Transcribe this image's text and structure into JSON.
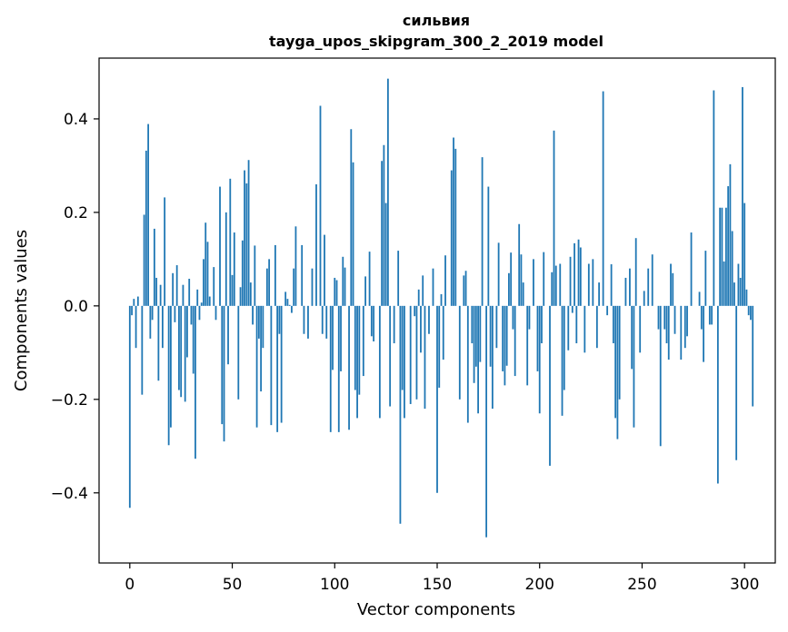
{
  "chart_data": {
    "type": "bar",
    "title": "сильвия",
    "subtitle": "tayga_upos_skipgram_300_2_2019 model",
    "xlabel": "Vector components",
    "ylabel": "Components values",
    "xlim": [
      -15,
      315
    ],
    "ylim": [
      -0.55,
      0.53
    ],
    "xticks": [
      0,
      50,
      100,
      150,
      200,
      250,
      300
    ],
    "xtick_labels": [
      "0",
      "50",
      "100",
      "150",
      "200",
      "250",
      "300"
    ],
    "yticks": [
      -0.4,
      -0.2,
      0.0,
      0.2,
      0.4
    ],
    "ytick_labels": [
      "−0.4",
      "−0.2",
      "0.0",
      "0.2",
      "0.4"
    ],
    "grid": false,
    "color": "#1f77b4",
    "series": [
      {
        "values": [
          -0.432,
          -0.02,
          0.015,
          -0.09,
          0.02,
          0.0,
          -0.19,
          0.195,
          0.332,
          0.389,
          -0.07,
          -0.03,
          0.165,
          0.06,
          -0.16,
          0.045,
          -0.09,
          0.232,
          0.0,
          -0.298,
          -0.26,
          0.07,
          -0.035,
          0.087,
          -0.18,
          -0.195,
          0.045,
          -0.205,
          -0.11,
          0.058,
          -0.04,
          -0.145,
          -0.327,
          0.035,
          -0.03,
          0.007,
          0.1,
          0.178,
          0.137,
          0.02,
          0.0,
          0.083,
          -0.03,
          0.0,
          0.255,
          -0.253,
          -0.29,
          0.2,
          -0.125,
          0.272,
          0.066,
          0.157,
          0.0,
          -0.2,
          0.04,
          0.14,
          0.29,
          0.262,
          0.312,
          0.05,
          -0.04,
          0.129,
          -0.26,
          -0.07,
          -0.183,
          -0.09,
          0.0,
          0.08,
          0.1,
          -0.255,
          0.0,
          0.13,
          -0.27,
          -0.06,
          -0.25,
          0.0,
          0.03,
          0.015,
          0.002,
          -0.015,
          0.08,
          0.17,
          0.0,
          0.0,
          0.13,
          -0.06,
          0.0,
          -0.07,
          0.0,
          0.08,
          0.0,
          0.26,
          0.0,
          0.428,
          -0.06,
          0.152,
          -0.07,
          0.0,
          -0.27,
          -0.137,
          0.06,
          0.055,
          -0.27,
          -0.14,
          0.105,
          0.082,
          0.0,
          -0.265,
          0.378,
          0.307,
          -0.18,
          -0.24,
          -0.19,
          0.0,
          -0.15,
          0.063,
          0.0,
          0.116,
          -0.065,
          -0.076,
          0.0,
          0.0,
          -0.24,
          0.31,
          0.344,
          0.22,
          0.486,
          -0.215,
          0.0,
          -0.08,
          0.0,
          0.118,
          -0.466,
          -0.18,
          -0.24,
          0.0,
          0.0,
          -0.21,
          0.0,
          -0.022,
          -0.2,
          0.035,
          -0.1,
          0.065,
          -0.22,
          0.0,
          -0.06,
          0.0,
          0.08,
          0.0,
          -0.4,
          -0.175,
          0.025,
          -0.115,
          0.108,
          0.0,
          0.0,
          0.29,
          0.36,
          0.336,
          0.0,
          -0.2,
          0.0,
          0.065,
          0.075,
          -0.25,
          0.0,
          -0.08,
          -0.165,
          -0.13,
          -0.23,
          -0.12,
          0.318,
          0.0,
          -0.495,
          0.255,
          -0.13,
          -0.22,
          0.0,
          -0.09,
          0.135,
          0.0,
          -0.14,
          -0.17,
          -0.128,
          0.07,
          0.114,
          -0.05,
          -0.15,
          0.0,
          0.175,
          0.11,
          0.05,
          0.0,
          -0.17,
          -0.05,
          0.0,
          0.1,
          0.0,
          -0.14,
          -0.23,
          -0.08,
          0.115,
          0.0,
          0.0,
          -0.342,
          0.072,
          0.375,
          0.086,
          0.0,
          0.09,
          -0.235,
          -0.18,
          0.0,
          -0.095,
          0.105,
          -0.015,
          0.134,
          -0.08,
          0.142,
          0.125,
          0.0,
          -0.1,
          0.0,
          0.09,
          0.0,
          0.1,
          0.0,
          -0.09,
          0.05,
          0.0,
          0.459,
          0.0,
          -0.02,
          0.0,
          0.089,
          -0.08,
          -0.24,
          -0.285,
          -0.2,
          0.0,
          0.0,
          0.06,
          0.0,
          0.08,
          -0.135,
          -0.26,
          0.145,
          0.0,
          -0.1,
          0.0,
          0.032,
          0.0,
          0.08,
          0.0,
          0.11,
          0.0,
          0.0,
          -0.05,
          -0.3,
          0.0,
          -0.05,
          -0.08,
          -0.115,
          0.09,
          0.07,
          -0.06,
          0.0,
          0.0,
          -0.115,
          0.0,
          -0.09,
          -0.065,
          0.0,
          0.157,
          0.0,
          0.0,
          0.0,
          0.03,
          -0.05,
          -0.12,
          0.118,
          0.0,
          -0.04,
          -0.04,
          0.461,
          0.0,
          -0.38,
          0.21,
          0.21,
          0.095,
          0.21,
          0.256,
          0.303,
          0.16,
          0.05,
          -0.33,
          0.09,
          0.06,
          0.468,
          0.22,
          0.035,
          -0.02,
          -0.03,
          -0.215
        ]
      }
    ]
  }
}
